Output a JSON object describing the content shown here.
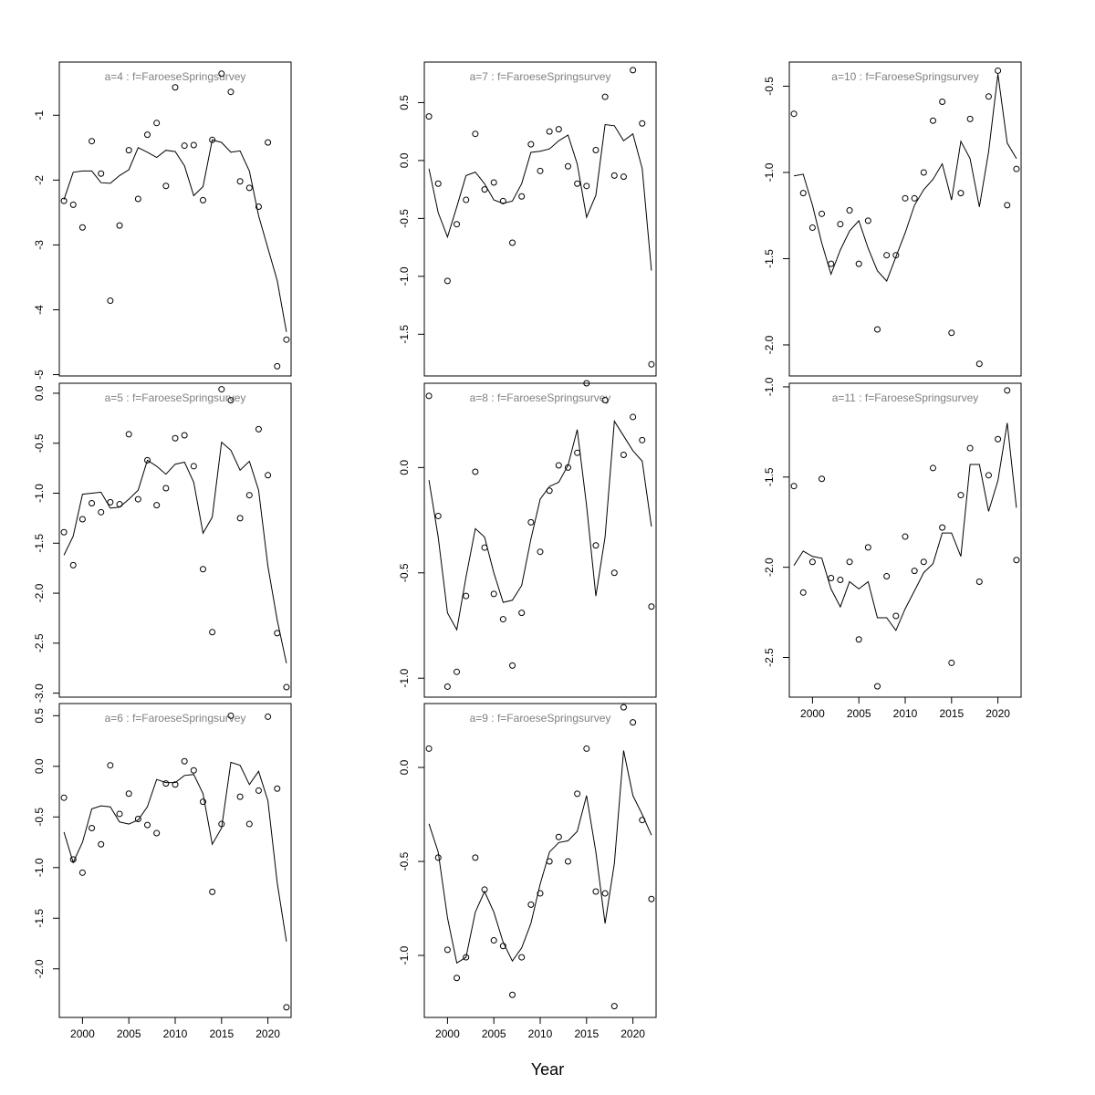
{
  "figure": {
    "xlabel": "Year"
  },
  "chart_data": [
    {
      "type": "scatter",
      "title": "a=4  :  f=FaroeseSpringsurvey",
      "xlim": [
        1997.5,
        2022.5
      ],
      "ylim": [
        -5.02,
        -0.18
      ],
      "yticks": [
        -5,
        -4,
        -3,
        -2,
        -1
      ],
      "ytick_labels": [
        "-5",
        "-4",
        "-3",
        "-2",
        "-1"
      ],
      "x": [
        1998,
        1999,
        2000,
        2001,
        2002,
        2003,
        2004,
        2005,
        2006,
        2007,
        2008,
        2009,
        2010,
        2011,
        2012,
        2013,
        2014,
        2015,
        2016,
        2017,
        2018,
        2019,
        2020,
        2021,
        2022
      ],
      "series": [
        {
          "name": "observed",
          "style": "points",
          "values": [
            -2.32,
            -2.38,
            -2.73,
            -1.4,
            -1.9,
            -3.86,
            -2.7,
            -1.54,
            -2.29,
            -1.3,
            -1.12,
            -2.09,
            -0.57,
            -1.47,
            -1.46,
            -2.31,
            -1.38,
            -0.36,
            -0.64,
            -2.02,
            -2.12,
            -2.41,
            -1.42,
            -4.87,
            -4.46
          ]
        },
        {
          "name": "fitted",
          "style": "line",
          "values": [
            -2.3,
            -1.88,
            -1.86,
            -1.86,
            -2.04,
            -2.05,
            -1.93,
            -1.84,
            -1.5,
            -1.57,
            -1.65,
            -1.54,
            -1.56,
            -1.78,
            -2.24,
            -2.1,
            -1.38,
            -1.42,
            -1.57,
            -1.55,
            -1.86,
            -2.55,
            -3.05,
            -3.55,
            -4.34
          ]
        }
      ]
    },
    {
      "type": "scatter",
      "title": "a=5  :  f=FaroeseSpringsurvey",
      "xlim": [
        1997.5,
        2022.5
      ],
      "ylim": [
        -3.04,
        0.1
      ],
      "yticks": [
        -3.0,
        -2.5,
        -2.0,
        -1.5,
        -1.0,
        -0.5,
        0.0
      ],
      "ytick_labels": [
        "-3.0",
        "-2.5",
        "-2.0",
        "-1.5",
        "-1.0",
        "-0.5",
        "0.0"
      ],
      "x": [
        1998,
        1999,
        2000,
        2001,
        2002,
        2003,
        2004,
        2005,
        2006,
        2007,
        2008,
        2009,
        2010,
        2011,
        2012,
        2013,
        2014,
        2015,
        2016,
        2017,
        2018,
        2019,
        2020,
        2021,
        2022
      ],
      "series": [
        {
          "name": "observed",
          "style": "points",
          "values": [
            -1.39,
            -1.72,
            -1.26,
            -1.1,
            -1.19,
            -1.09,
            -1.11,
            -0.41,
            -1.06,
            -0.67,
            -1.12,
            -0.95,
            -0.45,
            -0.42,
            -0.73,
            -1.76,
            -2.39,
            0.04,
            -0.07,
            -1.25,
            -1.02,
            -0.36,
            -0.82,
            -2.4,
            -2.94
          ]
        },
        {
          "name": "fitted",
          "style": "line",
          "values": [
            -1.62,
            -1.43,
            -1.01,
            -1.0,
            -0.99,
            -1.15,
            -1.14,
            -1.06,
            -0.97,
            -0.67,
            -0.73,
            -0.81,
            -0.71,
            -0.69,
            -0.89,
            -1.4,
            -1.24,
            -0.49,
            -0.57,
            -0.77,
            -0.68,
            -0.97,
            -1.73,
            -2.27,
            -2.7
          ]
        }
      ]
    },
    {
      "type": "scatter",
      "title": "a=6  :  f=FaroeseSpringsurvey",
      "xlim": [
        1997.5,
        2022.5
      ],
      "ylim": [
        -2.48,
        0.62
      ],
      "yticks": [
        -2.0,
        -1.5,
        -1.0,
        -0.5,
        0.0,
        0.5
      ],
      "ytick_labels": [
        "-2.0",
        "-1.5",
        "-1.0",
        "-0.5",
        "0.0",
        "0.5"
      ],
      "x": [
        1998,
        1999,
        2000,
        2001,
        2002,
        2003,
        2004,
        2005,
        2006,
        2007,
        2008,
        2009,
        2010,
        2011,
        2012,
        2013,
        2014,
        2015,
        2016,
        2017,
        2018,
        2019,
        2020,
        2021,
        2022
      ],
      "series": [
        {
          "name": "observed",
          "style": "points",
          "values": [
            -0.31,
            -0.92,
            -1.05,
            -0.61,
            -0.77,
            0.01,
            -0.47,
            -0.27,
            -0.52,
            -0.58,
            -0.66,
            -0.17,
            -0.18,
            0.05,
            -0.04,
            -0.35,
            -1.24,
            -0.57,
            0.5,
            -0.3,
            -0.57,
            -0.24,
            0.49,
            -0.22,
            -2.38
          ]
        },
        {
          "name": "fitted",
          "style": "line",
          "values": [
            -0.65,
            -0.95,
            -0.75,
            -0.42,
            -0.39,
            -0.4,
            -0.55,
            -0.57,
            -0.53,
            -0.4,
            -0.13,
            -0.16,
            -0.16,
            -0.09,
            -0.08,
            -0.27,
            -0.77,
            -0.61,
            0.04,
            0.01,
            -0.18,
            -0.05,
            -0.34,
            -1.15,
            -1.73
          ]
        }
      ]
    },
    {
      "type": "scatter",
      "title": "a=7  :  f=FaroeseSpringsurvey",
      "xlim": [
        1997.5,
        2022.5
      ],
      "ylim": [
        -1.86,
        0.85
      ],
      "yticks": [
        -1.5,
        -1.0,
        -0.5,
        0.0,
        0.5
      ],
      "ytick_labels": [
        "-1.5",
        "-1.0",
        "-0.5",
        "0.0",
        "0.5"
      ],
      "x": [
        1998,
        1999,
        2000,
        2001,
        2002,
        2003,
        2004,
        2005,
        2006,
        2007,
        2008,
        2009,
        2010,
        2011,
        2012,
        2013,
        2014,
        2015,
        2016,
        2017,
        2018,
        2019,
        2020,
        2021,
        2022
      ],
      "series": [
        {
          "name": "observed",
          "style": "points",
          "values": [
            0.38,
            -0.2,
            -1.04,
            -0.55,
            -0.34,
            0.23,
            -0.25,
            -0.19,
            -0.35,
            -0.71,
            -0.31,
            0.14,
            -0.09,
            0.25,
            0.27,
            -0.05,
            -0.2,
            -0.22,
            0.09,
            0.55,
            -0.13,
            -0.14,
            0.78,
            0.32,
            -1.76
          ]
        },
        {
          "name": "fitted",
          "style": "line",
          "values": [
            -0.07,
            -0.45,
            -0.66,
            -0.4,
            -0.13,
            -0.1,
            -0.2,
            -0.34,
            -0.37,
            -0.35,
            -0.2,
            0.07,
            0.08,
            0.1,
            0.17,
            0.22,
            -0.03,
            -0.49,
            -0.3,
            0.31,
            0.3,
            0.17,
            0.23,
            -0.07,
            -0.95
          ]
        }
      ]
    },
    {
      "type": "scatter",
      "title": "a=8  :  f=FaroeseSpringsurvey",
      "xlim": [
        1997.5,
        2022.5
      ],
      "ylim": [
        -1.09,
        0.4
      ],
      "yticks": [
        -1.0,
        -0.5,
        0.0
      ],
      "ytick_labels": [
        "-1.0",
        "-0.5",
        "0.0"
      ],
      "x": [
        1998,
        1999,
        2000,
        2001,
        2002,
        2003,
        2004,
        2005,
        2006,
        2007,
        2008,
        2009,
        2010,
        2011,
        2012,
        2013,
        2014,
        2015,
        2016,
        2017,
        2018,
        2019,
        2020,
        2021,
        2022
      ],
      "series": [
        {
          "name": "observed",
          "style": "points",
          "values": [
            0.34,
            -0.23,
            -1.04,
            -0.97,
            -0.61,
            -0.02,
            -0.38,
            -0.6,
            -0.72,
            -0.94,
            -0.69,
            -0.26,
            -0.4,
            -0.11,
            0.01,
            0.0,
            0.07,
            0.4,
            -0.37,
            0.32,
            -0.5,
            0.06,
            0.24,
            0.13,
            -0.66
          ]
        },
        {
          "name": "fitted",
          "style": "line",
          "values": [
            -0.06,
            -0.33,
            -0.69,
            -0.77,
            -0.52,
            -0.29,
            -0.33,
            -0.5,
            -0.64,
            -0.63,
            -0.56,
            -0.34,
            -0.15,
            -0.09,
            -0.07,
            0.01,
            0.18,
            -0.18,
            -0.61,
            -0.33,
            0.22,
            0.15,
            0.08,
            0.03,
            -0.28
          ]
        }
      ]
    },
    {
      "type": "scatter",
      "title": "a=9  :  f=FaroeseSpringsurvey",
      "xlim": [
        1997.5,
        2022.5
      ],
      "ylim": [
        -1.33,
        0.34
      ],
      "yticks": [
        -1.0,
        -0.5,
        0.0
      ],
      "ytick_labels": [
        "-1.0",
        "-0.5",
        "0.0"
      ],
      "x": [
        1998,
        1999,
        2000,
        2001,
        2002,
        2003,
        2004,
        2005,
        2006,
        2007,
        2008,
        2009,
        2010,
        2011,
        2012,
        2013,
        2014,
        2015,
        2016,
        2017,
        2018,
        2019,
        2020,
        2021,
        2022
      ],
      "series": [
        {
          "name": "observed",
          "style": "points",
          "values": [
            0.1,
            -0.48,
            -0.97,
            -1.12,
            -1.01,
            -0.48,
            -0.65,
            -0.92,
            -0.95,
            -1.21,
            -1.01,
            -0.73,
            -0.67,
            -0.5,
            -0.37,
            -0.5,
            -0.14,
            0.1,
            -0.66,
            -0.67,
            -1.27,
            0.32,
            0.24,
            -0.28,
            -0.7
          ]
        },
        {
          "name": "fitted",
          "style": "line",
          "values": [
            -0.3,
            -0.45,
            -0.8,
            -1.04,
            -1.01,
            -0.77,
            -0.66,
            -0.77,
            -0.93,
            -1.03,
            -0.96,
            -0.83,
            -0.62,
            -0.45,
            -0.4,
            -0.39,
            -0.34,
            -0.15,
            -0.45,
            -0.83,
            -0.51,
            0.09,
            -0.15,
            -0.25,
            -0.36
          ]
        }
      ]
    },
    {
      "type": "scatter",
      "title": "a=10  :  f=FaroeseSpringsurvey",
      "xlim": [
        1997.5,
        2022.5
      ],
      "ylim": [
        -2.18,
        -0.36
      ],
      "yticks": [
        -2.0,
        -1.5,
        -1.0,
        -0.5
      ],
      "ytick_labels": [
        "-2.0",
        "-1.5",
        "-1.0",
        "-0.5"
      ],
      "x": [
        1998,
        1999,
        2000,
        2001,
        2002,
        2003,
        2004,
        2005,
        2006,
        2007,
        2008,
        2009,
        2010,
        2011,
        2012,
        2013,
        2014,
        2015,
        2016,
        2017,
        2018,
        2019,
        2020,
        2021,
        2022
      ],
      "series": [
        {
          "name": "observed",
          "style": "points",
          "values": [
            -0.66,
            -1.12,
            -1.32,
            -1.24,
            -1.53,
            -1.3,
            -1.22,
            -1.53,
            -1.28,
            -1.91,
            -1.48,
            -1.48,
            -1.15,
            -1.15,
            -1.0,
            -0.7,
            -0.59,
            -1.93,
            -1.12,
            -0.69,
            -2.11,
            -0.56,
            -0.41,
            -1.19,
            -0.98
          ]
        },
        {
          "name": "fitted",
          "style": "line",
          "values": [
            -1.02,
            -1.01,
            -1.19,
            -1.41,
            -1.59,
            -1.45,
            -1.34,
            -1.28,
            -1.44,
            -1.57,
            -1.63,
            -1.49,
            -1.35,
            -1.19,
            -1.1,
            -1.04,
            -0.95,
            -1.16,
            -0.82,
            -0.92,
            -1.2,
            -0.88,
            -0.43,
            -0.83,
            -0.92
          ]
        }
      ]
    },
    {
      "type": "scatter",
      "title": "a=11  :  f=FaroeseSpringsurvey",
      "xlim": [
        1997.5,
        2022.5
      ],
      "ylim": [
        -2.72,
        -0.98
      ],
      "yticks": [
        -2.5,
        -2.0,
        -1.5,
        -1.0
      ],
      "ytick_labels": [
        "-2.5",
        "-2.0",
        "-1.5",
        "-1.0"
      ],
      "x": [
        1998,
        1999,
        2000,
        2001,
        2002,
        2003,
        2004,
        2005,
        2006,
        2007,
        2008,
        2009,
        2010,
        2011,
        2012,
        2013,
        2014,
        2015,
        2016,
        2017,
        2018,
        2019,
        2020,
        2021,
        2022
      ],
      "series": [
        {
          "name": "observed",
          "style": "points",
          "values": [
            -1.55,
            -2.14,
            -1.97,
            -1.51,
            -2.06,
            -2.07,
            -1.97,
            -2.4,
            -1.89,
            -2.66,
            -2.05,
            -2.27,
            -1.83,
            -2.02,
            -1.97,
            -1.45,
            -1.78,
            -2.53,
            -1.6,
            -1.34,
            -2.08,
            -1.49,
            -1.29,
            -1.02,
            -1.96
          ]
        },
        {
          "name": "fitted",
          "style": "line",
          "values": [
            -1.99,
            -1.91,
            -1.94,
            -1.95,
            -2.12,
            -2.22,
            -2.08,
            -2.12,
            -2.08,
            -2.28,
            -2.28,
            -2.35,
            -2.23,
            -2.13,
            -2.03,
            -1.98,
            -1.81,
            -1.81,
            -1.94,
            -1.43,
            -1.43,
            -1.69,
            -1.52,
            -1.2,
            -1.67
          ]
        }
      ]
    }
  ]
}
